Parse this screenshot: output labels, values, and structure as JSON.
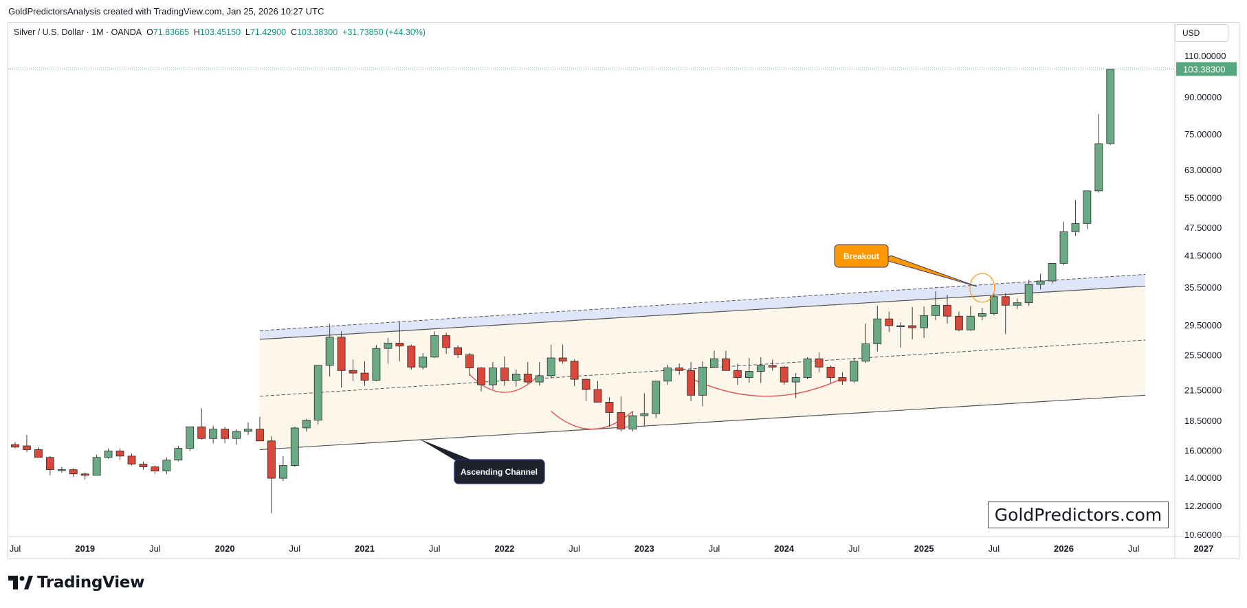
{
  "credit": "GoldPredictorsAnalysis created with TradingView.com, Jan 25, 2026 10:27 UTC",
  "legend": {
    "symbol": "Silver / U.S. Dollar · 1M · OANDA",
    "open_label": "O",
    "open": "71.83665",
    "high_label": "H",
    "high": "103.45150",
    "low_label": "L",
    "low": "71.42900",
    "close_label": "C",
    "close": "103.38300",
    "change": "+31.73850 (+44.30%)"
  },
  "currency": "USD",
  "brand_box": "GoldPredictors.com",
  "tradingview_logo": "TradingView",
  "colors": {
    "up": "#6aaa84",
    "down": "#d9483b",
    "grid": "#e0e3eb",
    "price_tag": "#56a77f",
    "channel_fill": "#fdf6ea",
    "upper_band": "#dfe6f8",
    "breakout": "#ff9800",
    "bowl": "#e34a4a"
  },
  "chart_data": {
    "type": "candlestick",
    "title": "",
    "interval": "1M",
    "y_scale": "log",
    "price_axis_ticks": [
      110,
      90,
      75,
      63,
      55,
      47.5,
      41.5,
      35.5,
      29.5,
      25.5,
      21.5,
      18.5,
      16,
      14,
      12.2,
      10.6
    ],
    "price_axis_labels": [
      "110.00000",
      "90.00000",
      "75.00000",
      "63.00000",
      "55.00000",
      "47.50000",
      "41.50000",
      "35.50000",
      "29.50000",
      "25.50000",
      "21.50000",
      "18.50000",
      "16.00000",
      "14.00000",
      "12.20000",
      "10.60000"
    ],
    "last_price_label": "103.38300",
    "last_price": 103.383,
    "time_axis_labels": [
      "Jul",
      "2019",
      "Jul",
      "2020",
      "Jul",
      "2021",
      "Jul",
      "2022",
      "Jul",
      "2023",
      "Jul",
      "2024",
      "Jul",
      "2025",
      "Jul",
      "2026",
      "Jul",
      "2027"
    ],
    "time_axis_dates": [
      "2018-07",
      "2019-01",
      "2019-07",
      "2020-01",
      "2020-07",
      "2021-01",
      "2021-07",
      "2022-01",
      "2022-07",
      "2023-01",
      "2023-07",
      "2024-01",
      "2024-07",
      "2025-01",
      "2025-07",
      "2026-01",
      "2026-07",
      "2027-01"
    ],
    "first_bar": "2018-07",
    "candles": [
      [
        16.5,
        16.7,
        16.2,
        16.3
      ],
      [
        16.4,
        17.3,
        15.9,
        16.1
      ],
      [
        16.1,
        16.3,
        15.5,
        15.5
      ],
      [
        15.5,
        15.6,
        14.2,
        14.6
      ],
      [
        14.6,
        14.8,
        14.4,
        14.6
      ],
      [
        14.6,
        14.7,
        14.1,
        14.3
      ],
      [
        14.3,
        14.4,
        13.9,
        14.2
      ],
      [
        14.2,
        15.7,
        14.2,
        15.5
      ],
      [
        15.5,
        16.2,
        15.4,
        16.0
      ],
      [
        16.0,
        16.2,
        15.3,
        15.6
      ],
      [
        15.6,
        15.8,
        14.9,
        15.0
      ],
      [
        15.0,
        15.2,
        14.6,
        14.8
      ],
      [
        14.8,
        14.9,
        14.3,
        14.5
      ],
      [
        14.5,
        15.5,
        14.3,
        15.3
      ],
      [
        15.3,
        16.4,
        15.2,
        16.2
      ],
      [
        16.2,
        18.0,
        16.0,
        18.0
      ],
      [
        18.0,
        19.7,
        16.9,
        17.0
      ],
      [
        17.0,
        18.1,
        16.6,
        17.8
      ],
      [
        17.8,
        18.0,
        16.6,
        17.0
      ],
      [
        17.0,
        17.8,
        16.5,
        17.6
      ],
      [
        17.6,
        18.4,
        17.3,
        17.8
      ],
      [
        17.8,
        18.9,
        17.4,
        16.8
      ],
      [
        16.8,
        17.2,
        11.8,
        14.0
      ],
      [
        14.0,
        15.6,
        13.8,
        14.9
      ],
      [
        14.9,
        18.0,
        14.8,
        17.9
      ],
      [
        17.9,
        18.7,
        17.6,
        18.6
      ],
      [
        18.6,
        24.3,
        18.2,
        24.3
      ],
      [
        24.3,
        29.8,
        23.0,
        27.9
      ],
      [
        27.9,
        28.7,
        21.8,
        23.7
      ],
      [
        23.7,
        25.0,
        22.5,
        23.4
      ],
      [
        23.4,
        24.8,
        22.0,
        22.6
      ],
      [
        22.6,
        26.8,
        22.5,
        26.4
      ],
      [
        26.4,
        27.8,
        24.5,
        27.1
      ],
      [
        27.1,
        30.1,
        24.8,
        26.7
      ],
      [
        26.7,
        26.9,
        23.8,
        24.1
      ],
      [
        24.1,
        25.8,
        23.8,
        25.3
      ],
      [
        25.3,
        28.7,
        25.2,
        28.1
      ],
      [
        28.1,
        28.5,
        25.7,
        26.5
      ],
      [
        26.5,
        26.8,
        25.2,
        25.6
      ],
      [
        25.6,
        25.8,
        23.1,
        24.0
      ],
      [
        24.0,
        24.1,
        21.4,
        22.1
      ],
      [
        22.1,
        24.7,
        21.6,
        24.0
      ],
      [
        24.0,
        25.4,
        22.0,
        22.6
      ],
      [
        22.6,
        23.8,
        21.9,
        23.3
      ],
      [
        23.3,
        24.7,
        22.2,
        22.4
      ],
      [
        22.4,
        24.7,
        22.0,
        23.1
      ],
      [
        23.1,
        26.9,
        22.8,
        25.2
      ],
      [
        25.2,
        26.9,
        24.5,
        24.8
      ],
      [
        24.8,
        25.0,
        22.0,
        22.7
      ],
      [
        22.7,
        22.8,
        20.4,
        21.6
      ],
      [
        21.6,
        22.5,
        20.5,
        20.3
      ],
      [
        20.3,
        20.8,
        18.0,
        19.3
      ],
      [
        19.3,
        20.9,
        17.6,
        17.8
      ],
      [
        17.8,
        19.4,
        17.6,
        19.0
      ],
      [
        19.0,
        21.2,
        18.1,
        19.2
      ],
      [
        19.2,
        22.2,
        18.8,
        22.5
      ],
      [
        22.5,
        24.4,
        22.1,
        24.0
      ],
      [
        24.0,
        24.5,
        23.2,
        23.7
      ],
      [
        23.7,
        24.7,
        20.4,
        21.0
      ],
      [
        21.0,
        24.8,
        19.9,
        24.1
      ],
      [
        24.1,
        26.1,
        24.0,
        25.1
      ],
      [
        25.1,
        26.1,
        24.0,
        23.7
      ],
      [
        23.7,
        24.5,
        22.1,
        22.9
      ],
      [
        22.9,
        25.2,
        22.3,
        23.6
      ],
      [
        23.6,
        25.3,
        22.3,
        24.3
      ],
      [
        24.3,
        25.0,
        23.7,
        24.1
      ],
      [
        24.1,
        24.3,
        22.1,
        22.4
      ],
      [
        22.4,
        23.4,
        20.7,
        22.9
      ],
      [
        22.9,
        25.3,
        22.7,
        25.1
      ],
      [
        25.1,
        25.9,
        23.5,
        24.1
      ],
      [
        24.1,
        24.3,
        22.3,
        22.9
      ],
      [
        22.9,
        23.5,
        22.1,
        22.5
      ],
      [
        22.5,
        25.2,
        22.3,
        24.8
      ],
      [
        24.8,
        29.8,
        24.6,
        27.0
      ],
      [
        27.0,
        32.5,
        26.0,
        30.5
      ],
      [
        30.5,
        31.6,
        28.6,
        29.5
      ],
      [
        29.5,
        30.0,
        26.5,
        29.5
      ],
      [
        29.5,
        32.3,
        27.6,
        29.2
      ],
      [
        29.2,
        32.4,
        27.8,
        31.0
      ],
      [
        31.0,
        34.9,
        30.3,
        32.6
      ],
      [
        32.6,
        34.3,
        29.8,
        30.9
      ],
      [
        30.9,
        31.6,
        28.7,
        28.9
      ],
      [
        28.9,
        32.5,
        28.8,
        30.9
      ],
      [
        30.9,
        32.2,
        30.3,
        31.3
      ],
      [
        31.3,
        34.6,
        31.0,
        34.0
      ],
      [
        34.0,
        34.6,
        28.3,
        32.6
      ],
      [
        32.6,
        33.7,
        32.0,
        33.0
      ],
      [
        33.0,
        36.9,
        32.5,
        36.1
      ],
      [
        36.1,
        38.0,
        35.2,
        36.7
      ],
      [
        36.7,
        39.6,
        36.3,
        40.0
      ],
      [
        40.0,
        49.0,
        39.7,
        46.7
      ],
      [
        46.7,
        54.5,
        45.7,
        48.6
      ],
      [
        48.6,
        57.0,
        47.3,
        57.0
      ],
      [
        57.0,
        83.0,
        56.5,
        71.8
      ],
      [
        71.8,
        103.45,
        71.4,
        103.383
      ]
    ],
    "annotations": [
      {
        "label": "Breakout",
        "date": "2025-06",
        "price": 35.5
      },
      {
        "label": "Ascending Channel",
        "date": "2021-10",
        "price": 17.2
      }
    ],
    "channel": {
      "start": "2020-04",
      "end": "2026-08",
      "upper": [
        27.6,
        35.8
      ],
      "lower": [
        16.1,
        21.0
      ],
      "upper_band_top": [
        28.8,
        37.9
      ],
      "mid_dashed": [
        20.9,
        27.5
      ]
    },
    "bowls": [
      {
        "from": "2021-10",
        "to": "2022-04",
        "depth": 21.3
      },
      {
        "from": "2022-05",
        "to": "2022-12",
        "depth": 17.8
      },
      {
        "from": "2023-05",
        "to": "2024-06",
        "depth": 20.9
      }
    ],
    "grid": false
  }
}
